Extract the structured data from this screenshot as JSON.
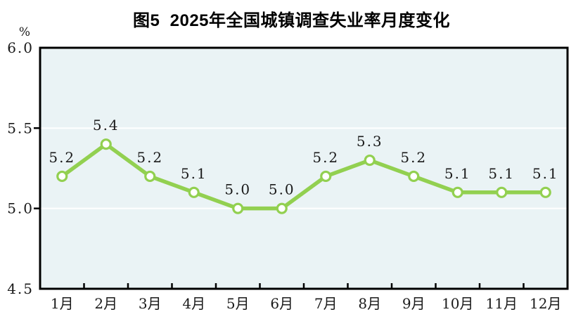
{
  "figure": {
    "title": "图5  2025年全国城镇调查失业率月度变化",
    "unit_label": "%"
  },
  "chart_data": {
    "type": "line",
    "title": "图5  2025年全国城镇调查失业率月度变化",
    "categories": [
      "1月",
      "2月",
      "3月",
      "4月",
      "5月",
      "6月",
      "7月",
      "8月",
      "9月",
      "10月",
      "11月",
      "12月"
    ],
    "values": [
      5.2,
      5.4,
      5.2,
      5.1,
      5.0,
      5.0,
      5.2,
      5.3,
      5.2,
      5.1,
      5.1,
      5.1
    ],
    "point_labels": [
      "5.2",
      "5.4",
      "5.2",
      "5.1",
      "5.0",
      "5.0",
      "5.2",
      "5.3",
      "5.2",
      "5.1",
      "5.1",
      "5.1"
    ],
    "xlabel": "",
    "ylabel": "%",
    "ylim": [
      4.5,
      6.0
    ],
    "yticks": [
      {
        "value": 4.5,
        "label": "4.5"
      },
      {
        "value": 5.0,
        "label": "5.0"
      },
      {
        "value": 5.5,
        "label": "5.5"
      },
      {
        "value": 6.0,
        "label": "6.0"
      }
    ],
    "grid": {
      "horizontal": true,
      "vertical": false
    },
    "legend": "none",
    "colors": {
      "line": "#92d050",
      "marker_fill": "#ffffff",
      "plot_bg": "#eaf3f5",
      "grid": "#ffffff",
      "border": "#000000",
      "text": "#1a1a1a"
    }
  }
}
